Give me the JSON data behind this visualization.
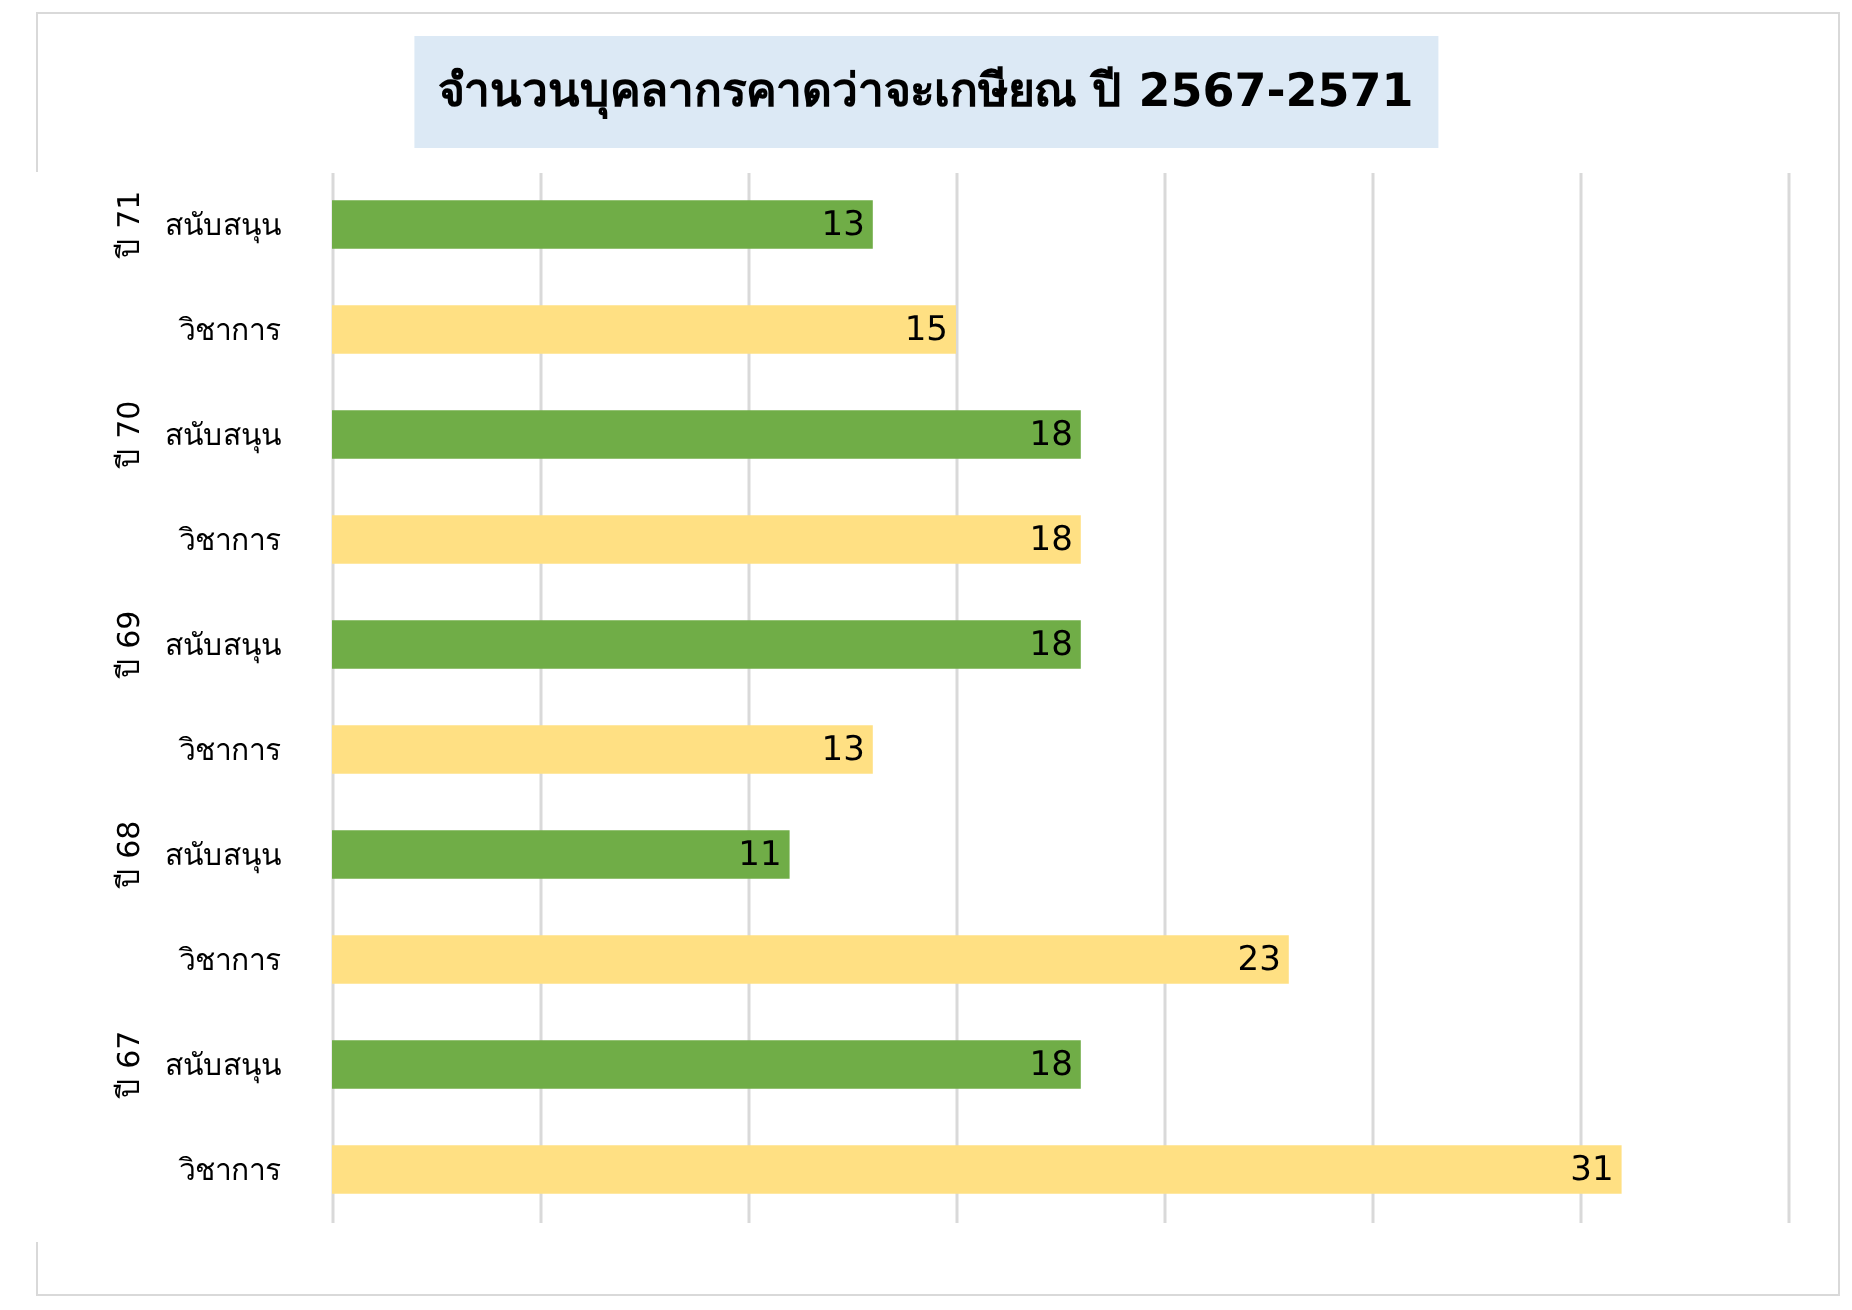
{
  "chart_data": {
    "type": "bar",
    "orientation": "horizontal",
    "title": "จำนวนบุคลากรคาดว่าจะเกษียณ ปี 2567-2571",
    "categories": [
      "สนับสนุน",
      "วิชาการ",
      "สนับสนุน",
      "วิชาการ",
      "สนับสนุน",
      "วิชาการ",
      "สนับสนุน",
      "วิชาการ",
      "สนับสนุน",
      "วิชาการ"
    ],
    "values": [
      13,
      15,
      18,
      18,
      18,
      13,
      11,
      23,
      18,
      31
    ],
    "colors": [
      "#70ad47",
      "#ffe083",
      "#70ad47",
      "#ffe083",
      "#70ad47",
      "#ffe083",
      "#70ad47",
      "#ffe083",
      "#70ad47",
      "#ffe083"
    ],
    "annotations": [
      "ปี 71",
      "ปี 70",
      "ปี 69",
      "ปี 68",
      "ปี 67"
    ],
    "xlim": [
      0,
      35
    ],
    "xticks": [
      {
        "value": 0,
        "label": null
      },
      {
        "value": 5,
        "label": null
      },
      {
        "value": 10,
        "label": null
      },
      {
        "value": 15,
        "label": null
      },
      {
        "value": 20,
        "label": null
      },
      {
        "value": 25,
        "label": null
      },
      {
        "value": 30,
        "label": null
      },
      {
        "value": 35,
        "label": null
      }
    ],
    "grid": "x",
    "tick_labels": "y",
    "data_labels": true
  }
}
